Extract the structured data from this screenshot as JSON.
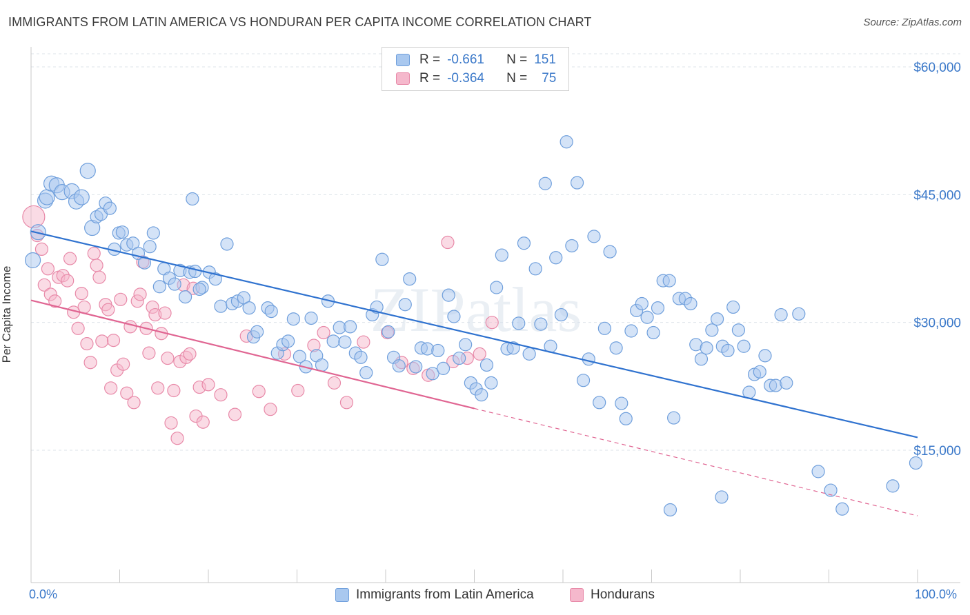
{
  "header": {
    "title": "IMMIGRANTS FROM LATIN AMERICA VS HONDURAN PER CAPITA INCOME CORRELATION CHART",
    "source": "Source: ZipAtlas.com"
  },
  "watermark": "ZIPatlas",
  "legend": {
    "series1": {
      "r_label": "R =",
      "r_value": "-0.661",
      "n_label": "N =",
      "n_value": "151"
    },
    "series2": {
      "r_label": "R =",
      "r_value": "-0.364",
      "n_label": "N =",
      "n_value": "75"
    }
  },
  "colors": {
    "blue_fill": "#a9c8ef",
    "blue_stroke": "#6f9fdc",
    "blue_line": "#2f72cf",
    "pink_fill": "#f5b8cc",
    "pink_stroke": "#e889a8",
    "pink_line": "#e06592",
    "axis_text": "#3a78c9",
    "grid": "#dde3ea"
  },
  "chart_data": {
    "type": "scatter",
    "title": "IMMIGRANTS FROM LATIN AMERICA VS HONDURAN PER CAPITA INCOME CORRELATION CHART",
    "ylabel": "Per Capita Income",
    "xlabel": "",
    "xlim": [
      0,
      100
    ],
    "ylim": [
      0,
      63000
    ],
    "x_tick_labels": [
      "0.0%",
      "100.0%"
    ],
    "y_ticks": [
      {
        "value": 15000,
        "label": "$15,000"
      },
      {
        "value": 30000,
        "label": "$30,000"
      },
      {
        "value": 45000,
        "label": "$45,000"
      },
      {
        "value": 60000,
        "label": "$60,000"
      }
    ],
    "grid": "horizontal dashed",
    "legend_position": "top-center",
    "series": [
      {
        "name": "Immigrants from Latin America",
        "color": "#6f9fdc",
        "trend": {
          "x0": 0,
          "y0": 40700,
          "x1": 100,
          "y1": 16500
        },
        "points": [
          [
            0.2,
            37300
          ],
          [
            0.8,
            40600
          ],
          [
            1.6,
            44300
          ],
          [
            1.8,
            44700
          ],
          [
            2.3,
            46300
          ],
          [
            2.9,
            46100
          ],
          [
            3.5,
            45300
          ],
          [
            4.6,
            45400
          ],
          [
            5.1,
            44200
          ],
          [
            5.7,
            44700
          ],
          [
            6.4,
            47800
          ],
          [
            6.9,
            41100
          ],
          [
            7.4,
            42400
          ],
          [
            7.9,
            42700
          ],
          [
            8.4,
            44000
          ],
          [
            8.9,
            43400
          ],
          [
            9.4,
            38600
          ],
          [
            9.9,
            40500
          ],
          [
            10.3,
            40600
          ],
          [
            10.8,
            39100
          ],
          [
            11.5,
            39300
          ],
          [
            12.1,
            38100
          ],
          [
            12.8,
            37000
          ],
          [
            13.4,
            38900
          ],
          [
            13.8,
            40500
          ],
          [
            14.5,
            34200
          ],
          [
            15.0,
            36300
          ],
          [
            15.6,
            35200
          ],
          [
            16.2,
            34500
          ],
          [
            16.8,
            36100
          ],
          [
            17.4,
            33000
          ],
          [
            17.9,
            35900
          ],
          [
            18.5,
            36000
          ],
          [
            18.2,
            44500
          ],
          [
            19.3,
            34100
          ],
          [
            19.0,
            33900
          ],
          [
            20.1,
            35900
          ],
          [
            20.8,
            35100
          ],
          [
            21.4,
            31900
          ],
          [
            22.1,
            39200
          ],
          [
            22.7,
            32200
          ],
          [
            23.3,
            32500
          ],
          [
            24.0,
            32900
          ],
          [
            24.6,
            31700
          ],
          [
            25.1,
            28300
          ],
          [
            25.5,
            28900
          ],
          [
            26.7,
            31700
          ],
          [
            27.1,
            31300
          ],
          [
            27.8,
            26400
          ],
          [
            28.4,
            27400
          ],
          [
            29.0,
            27800
          ],
          [
            29.6,
            30400
          ],
          [
            30.3,
            26000
          ],
          [
            31.0,
            24800
          ],
          [
            31.6,
            30500
          ],
          [
            32.2,
            26100
          ],
          [
            32.8,
            25000
          ],
          [
            33.5,
            32500
          ],
          [
            34.1,
            27800
          ],
          [
            34.8,
            29400
          ],
          [
            35.4,
            27700
          ],
          [
            36.0,
            29500
          ],
          [
            36.6,
            26400
          ],
          [
            37.2,
            25900
          ],
          [
            37.8,
            24100
          ],
          [
            38.5,
            30900
          ],
          [
            39.0,
            31800
          ],
          [
            39.6,
            37400
          ],
          [
            40.3,
            28900
          ],
          [
            40.9,
            25900
          ],
          [
            41.5,
            24900
          ],
          [
            42.2,
            32100
          ],
          [
            42.7,
            35100
          ],
          [
            43.4,
            24800
          ],
          [
            44.0,
            27000
          ],
          [
            44.7,
            26900
          ],
          [
            45.3,
            24000
          ],
          [
            45.9,
            26700
          ],
          [
            46.5,
            24600
          ],
          [
            47.1,
            33200
          ],
          [
            47.7,
            30700
          ],
          [
            48.3,
            25800
          ],
          [
            49.0,
            27400
          ],
          [
            49.6,
            22900
          ],
          [
            50.2,
            22200
          ],
          [
            50.8,
            21500
          ],
          [
            51.4,
            25000
          ],
          [
            51.9,
            22900
          ],
          [
            52.5,
            34100
          ],
          [
            53.1,
            37900
          ],
          [
            53.7,
            26900
          ],
          [
            54.4,
            27000
          ],
          [
            55.0,
            29900
          ],
          [
            55.6,
            39300
          ],
          [
            56.2,
            26300
          ],
          [
            56.9,
            36300
          ],
          [
            57.5,
            29800
          ],
          [
            58.0,
            46300
          ],
          [
            58.6,
            27200
          ],
          [
            59.2,
            37600
          ],
          [
            59.8,
            30900
          ],
          [
            60.4,
            51200
          ],
          [
            61.0,
            39000
          ],
          [
            61.6,
            46400
          ],
          [
            62.3,
            23200
          ],
          [
            62.9,
            25700
          ],
          [
            63.5,
            40100
          ],
          [
            64.1,
            20600
          ],
          [
            64.7,
            29300
          ],
          [
            65.3,
            38300
          ],
          [
            66.0,
            27000
          ],
          [
            66.6,
            20500
          ],
          [
            67.1,
            18700
          ],
          [
            67.7,
            29000
          ],
          [
            68.3,
            31400
          ],
          [
            68.9,
            32200
          ],
          [
            69.5,
            30600
          ],
          [
            70.2,
            28800
          ],
          [
            70.7,
            31700
          ],
          [
            71.3,
            34900
          ],
          [
            72.0,
            34900
          ],
          [
            72.5,
            18800
          ],
          [
            73.1,
            32800
          ],
          [
            73.8,
            32800
          ],
          [
            74.4,
            32200
          ],
          [
            75.0,
            27400
          ],
          [
            75.6,
            25700
          ],
          [
            76.2,
            27000
          ],
          [
            76.8,
            29100
          ],
          [
            77.4,
            30400
          ],
          [
            78.0,
            27200
          ],
          [
            78.6,
            26700
          ],
          [
            79.2,
            31800
          ],
          [
            79.8,
            29100
          ],
          [
            80.4,
            27200
          ],
          [
            81.0,
            21800
          ],
          [
            81.6,
            23900
          ],
          [
            82.2,
            24200
          ],
          [
            82.8,
            26100
          ],
          [
            83.4,
            22600
          ],
          [
            84.0,
            22600
          ],
          [
            84.6,
            30900
          ],
          [
            85.2,
            22900
          ],
          [
            86.6,
            31000
          ],
          [
            88.8,
            12500
          ],
          [
            90.2,
            10300
          ],
          [
            91.5,
            8100
          ],
          [
            72.1,
            8000
          ],
          [
            77.9,
            9500
          ],
          [
            97.2,
            10800
          ],
          [
            99.8,
            13500
          ]
        ]
      },
      {
        "name": "Hondurans",
        "color": "#e889a8",
        "trend": {
          "x0": 0,
          "y0": 32600,
          "x1": 50,
          "y1": 19900,
          "dash_to_x": 100,
          "dash_to_y": 7300
        },
        "points": [
          [
            0.3,
            42400
          ],
          [
            0.7,
            40200
          ],
          [
            1.2,
            38600
          ],
          [
            1.5,
            34400
          ],
          [
            1.9,
            36300
          ],
          [
            2.2,
            33300
          ],
          [
            2.7,
            32500
          ],
          [
            3.1,
            35300
          ],
          [
            3.6,
            35500
          ],
          [
            4.1,
            34900
          ],
          [
            4.4,
            37500
          ],
          [
            4.8,
            31200
          ],
          [
            5.3,
            29300
          ],
          [
            5.7,
            33400
          ],
          [
            6.0,
            31800
          ],
          [
            6.3,
            27500
          ],
          [
            6.7,
            25300
          ],
          [
            7.1,
            38100
          ],
          [
            7.4,
            36700
          ],
          [
            7.7,
            35300
          ],
          [
            8.0,
            27800
          ],
          [
            8.4,
            32100
          ],
          [
            8.7,
            31500
          ],
          [
            9.0,
            22300
          ],
          [
            9.3,
            27900
          ],
          [
            9.7,
            24400
          ],
          [
            10.1,
            32700
          ],
          [
            10.4,
            25100
          ],
          [
            10.8,
            21700
          ],
          [
            11.2,
            29500
          ],
          [
            11.6,
            20600
          ],
          [
            12.0,
            32500
          ],
          [
            12.3,
            33300
          ],
          [
            12.6,
            37100
          ],
          [
            13.0,
            29300
          ],
          [
            13.3,
            26400
          ],
          [
            13.7,
            31800
          ],
          [
            14.0,
            30900
          ],
          [
            14.3,
            22300
          ],
          [
            14.7,
            28700
          ],
          [
            15.1,
            31100
          ],
          [
            15.4,
            25800
          ],
          [
            15.8,
            18200
          ],
          [
            16.1,
            22000
          ],
          [
            16.5,
            16400
          ],
          [
            16.8,
            25400
          ],
          [
            17.2,
            34400
          ],
          [
            17.5,
            25900
          ],
          [
            17.9,
            26300
          ],
          [
            18.3,
            34000
          ],
          [
            18.6,
            19000
          ],
          [
            19.0,
            22400
          ],
          [
            19.4,
            18300
          ],
          [
            20.0,
            22700
          ],
          [
            21.4,
            21500
          ],
          [
            23.0,
            19200
          ],
          [
            24.3,
            28400
          ],
          [
            25.7,
            21900
          ],
          [
            27.0,
            19800
          ],
          [
            28.6,
            26300
          ],
          [
            30.1,
            22000
          ],
          [
            31.9,
            27300
          ],
          [
            33.0,
            28800
          ],
          [
            34.2,
            22900
          ],
          [
            35.6,
            20600
          ],
          [
            37.5,
            27700
          ],
          [
            40.2,
            28800
          ],
          [
            41.8,
            25300
          ],
          [
            43.1,
            24600
          ],
          [
            44.8,
            23800
          ],
          [
            47.0,
            39400
          ],
          [
            47.6,
            25400
          ],
          [
            49.2,
            25800
          ],
          [
            50.6,
            26300
          ],
          [
            52.0,
            30000
          ]
        ]
      }
    ]
  },
  "bottom_legend": {
    "item1": "Immigrants from Latin America",
    "item2": "Hondurans"
  },
  "x_axis": {
    "left_label": "0.0%",
    "right_label": "100.0%"
  }
}
